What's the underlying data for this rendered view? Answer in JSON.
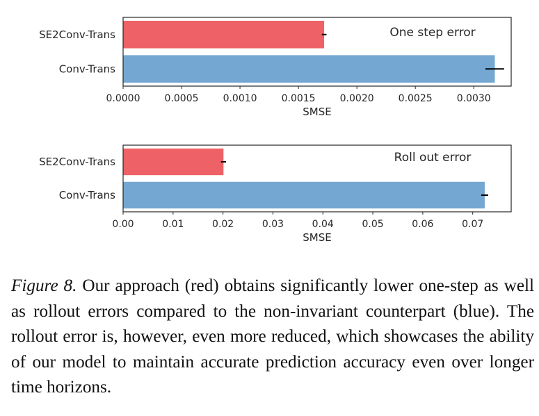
{
  "chart_data": [
    {
      "type": "bar",
      "orientation": "horizontal",
      "categories": [
        "SE2Conv-Trans",
        "Conv-Trans"
      ],
      "values": [
        0.00172,
        0.00318
      ],
      "error": [
        2e-05,
        8e-05
      ],
      "colors": [
        "#ee6166",
        "#74a7d1"
      ],
      "annotation": "One step error",
      "xlabel": "SMSE",
      "xlim": [
        0,
        0.00332
      ],
      "xticks": [
        0,
        0.0005,
        0.001,
        0.0015,
        0.002,
        0.0025,
        0.003
      ],
      "xtick_labels": [
        "0.0000",
        "0.0005",
        "0.0010",
        "0.0015",
        "0.0020",
        "0.0025",
        "0.0030"
      ],
      "grid": false
    },
    {
      "type": "bar",
      "orientation": "horizontal",
      "categories": [
        "SE2Conv-Trans",
        "Conv-Trans"
      ],
      "values": [
        0.0201,
        0.0724
      ],
      "error": [
        0.0005,
        0.0007
      ],
      "colors": [
        "#ee6166",
        "#74a7d1"
      ],
      "annotation": "Roll out error",
      "xlabel": "SMSE",
      "xlim": [
        0,
        0.0777
      ],
      "xticks": [
        0,
        0.01,
        0.02,
        0.03,
        0.04,
        0.05,
        0.06,
        0.07
      ],
      "xtick_labels": [
        "0.00",
        "0.01",
        "0.02",
        "0.03",
        "0.04",
        "0.05",
        "0.06",
        "0.07"
      ],
      "grid": false
    }
  ],
  "caption": {
    "label": "Figure 8.",
    "text": " Our approach (red) obtains significantly lower one-step as well as rollout errors compared to the non-invariant counterpart (blue). The rollout error is, however, even more reduced, which showcases the ability of our model to maintain accurate prediction accuracy even over longer time horizons."
  }
}
